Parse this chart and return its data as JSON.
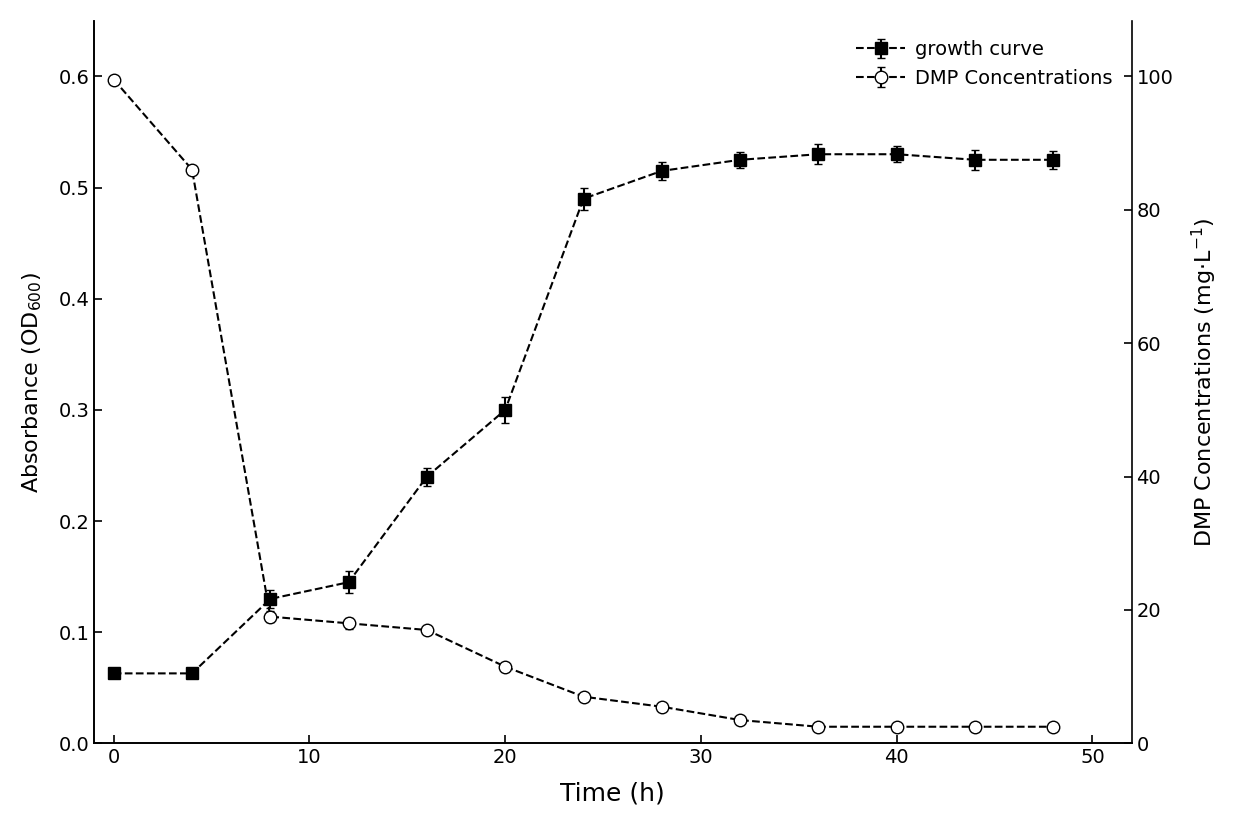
{
  "growth_time": [
    0,
    4,
    8,
    12,
    16,
    20,
    24,
    28,
    32,
    36,
    40,
    44,
    48
  ],
  "growth_od": [
    0.063,
    0.063,
    0.13,
    0.145,
    0.24,
    0.3,
    0.49,
    0.515,
    0.525,
    0.53,
    0.53,
    0.525,
    0.525
  ],
  "growth_err": [
    0.003,
    0.003,
    0.008,
    0.01,
    0.008,
    0.012,
    0.01,
    0.008,
    0.007,
    0.009,
    0.007,
    0.009,
    0.008
  ],
  "dmp_time": [
    0,
    4,
    8,
    12,
    16,
    20,
    24,
    28,
    32,
    36,
    40,
    44,
    48
  ],
  "dmp_conc": [
    99.5,
    86.0,
    19.0,
    18.0,
    17.0,
    11.5,
    7.0,
    5.5,
    3.5,
    2.5,
    2.5,
    2.5,
    2.5
  ],
  "dmp_err": [
    0.5,
    0.5,
    0.8,
    0.8,
    0.5,
    0.5,
    0.3,
    0.3,
    0.3,
    0.3,
    0.3,
    0.3,
    0.3
  ],
  "xlabel": "Time (h)",
  "ylabel_left": "Absorbance (OD$_{600}$)",
  "ylabel_right": "DMP Concentrations (mg·L$^{-1}$)",
  "legend_growth": "growth curve",
  "legend_dmp": "DMP Concentrations",
  "xlim": [
    -1,
    52
  ],
  "ylim_left": [
    0.0,
    0.65
  ],
  "ylim_right": [
    0,
    108.3
  ],
  "xticks": [
    0,
    10,
    20,
    30,
    40,
    50
  ],
  "yticks_left": [
    0.0,
    0.1,
    0.2,
    0.3,
    0.4,
    0.5,
    0.6
  ],
  "yticks_right": [
    0,
    20,
    40,
    60,
    80,
    100
  ],
  "line_color": "black",
  "bg_color": "white",
  "marker_size_square": 8,
  "marker_size_circle": 9,
  "linewidth": 1.5,
  "capsize": 3,
  "legend_fontsize": 14,
  "axis_label_fontsize": 16,
  "tick_labelsize": 14,
  "xlabel_fontsize": 18
}
